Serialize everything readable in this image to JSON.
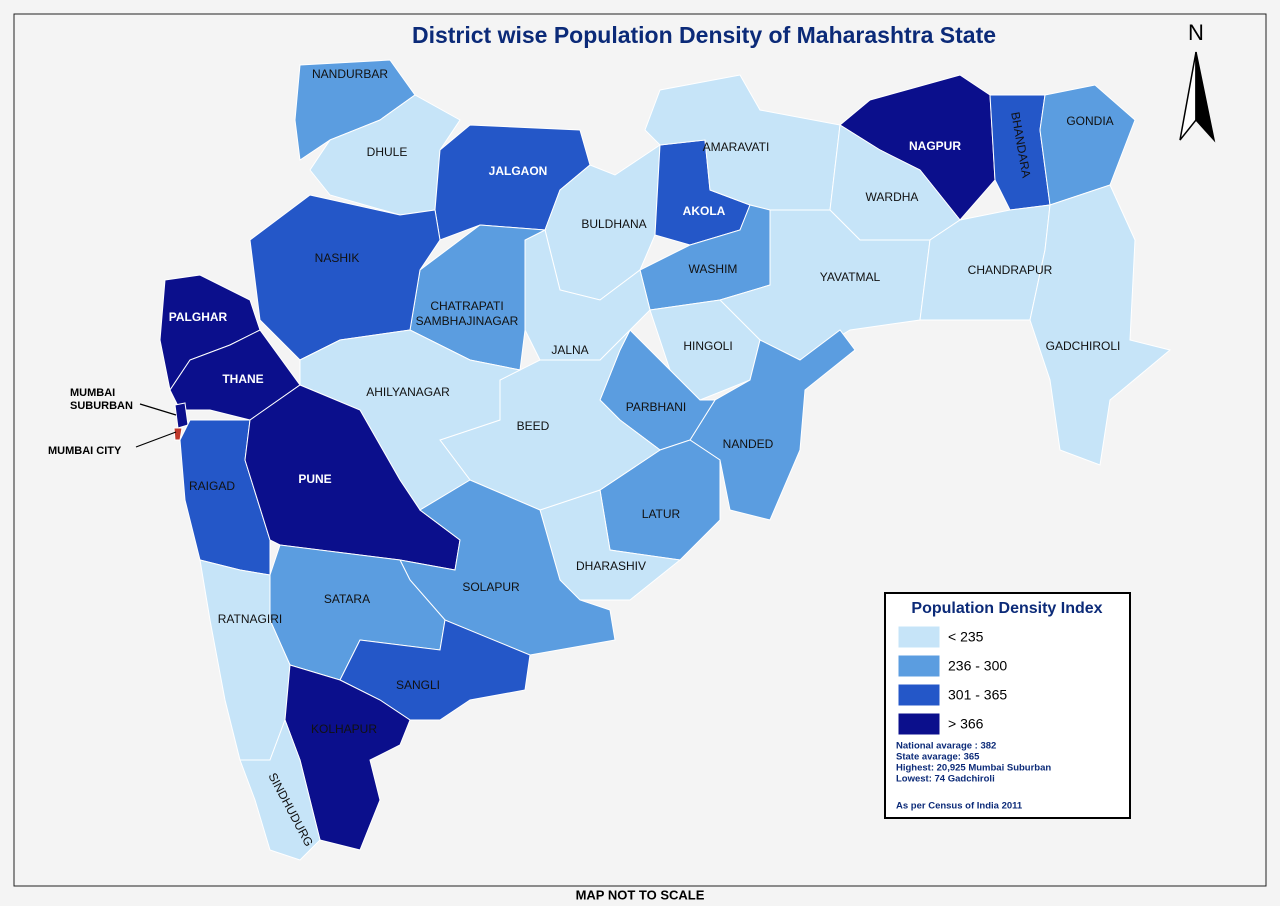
{
  "title": "District wise Population Density of Maharashtra State",
  "north": "N",
  "footer": "MAP NOT TO SCALE",
  "districts": [
    {
      "name": "NANDURBAR",
      "color": "#5b9de0"
    },
    {
      "name": "DHULE",
      "color": "#c6e4f8"
    },
    {
      "name": "JALGAON",
      "color": "#2457c8"
    },
    {
      "name": "BULDHANA",
      "color": "#c6e4f8"
    },
    {
      "name": "AKOLA",
      "color": "#2457c8"
    },
    {
      "name": "AMARAVATI",
      "color": "#c6e4f8"
    },
    {
      "name": "WASHIM",
      "color": "#5b9de0"
    },
    {
      "name": "NAGPUR",
      "color": "#0b0f8c"
    },
    {
      "name": "BHANDARA",
      "color": "#2457c8"
    },
    {
      "name": "GONDIA",
      "color": "#5b9de0"
    },
    {
      "name": "WARDHA",
      "color": "#c6e4f8"
    },
    {
      "name": "YAVATMAL",
      "color": "#c6e4f8"
    },
    {
      "name": "CHANDRAPUR",
      "color": "#c6e4f8"
    },
    {
      "name": "GADCHIROLI",
      "color": "#c6e4f8"
    },
    {
      "name": "HINGOLI",
      "color": "#c6e4f8"
    },
    {
      "name": "NANDED",
      "color": "#5b9de0"
    },
    {
      "name": "PARBHANI",
      "color": "#5b9de0"
    },
    {
      "name": "LATUR",
      "color": "#5b9de0"
    },
    {
      "name": "DHARASHIV",
      "color": "#c6e4f8"
    },
    {
      "name": "BEED",
      "color": "#c6e4f8"
    },
    {
      "name": "JALNA",
      "color": "#c6e4f8"
    },
    {
      "name": "CHATRAPATI SAMBHAJINAGAR",
      "color": "#5b9de0"
    },
    {
      "name": "NASHIK",
      "color": "#2457c8"
    },
    {
      "name": "AHILYANAGAR",
      "color": "#c6e4f8"
    },
    {
      "name": "PALGHAR",
      "color": "#0b0f8c"
    },
    {
      "name": "THANE",
      "color": "#0b0f8c"
    },
    {
      "name": "MUMBAI SUBURBAN",
      "color": "#0b0f8c"
    },
    {
      "name": "MUMBAI CITY",
      "color": "#c0392b"
    },
    {
      "name": "RAIGAD",
      "color": "#2457c8"
    },
    {
      "name": "PUNE",
      "color": "#0b0f8c"
    },
    {
      "name": "SOLAPUR",
      "color": "#5b9de0"
    },
    {
      "name": "SATARA",
      "color": "#5b9de0"
    },
    {
      "name": "RATNAGIRI",
      "color": "#c6e4f8"
    },
    {
      "name": "SANGLI",
      "color": "#2457c8"
    },
    {
      "name": "KOLHAPUR",
      "color": "#0b0f8c"
    },
    {
      "name": "SINDHUDURG",
      "color": "#c6e4f8"
    }
  ],
  "legend": {
    "title": "Population Density Index",
    "items": [
      {
        "label": "<  235",
        "color": "#c6e4f8"
      },
      {
        "label": "236 - 300",
        "color": "#5b9de0"
      },
      {
        "label": "301 - 365",
        "color": "#2457c8"
      },
      {
        "label": "> 366",
        "color": "#0b0f8c"
      }
    ],
    "notes": [
      "National avarage : 382",
      "State avarage: 365",
      "Highest: 20,925 Mumbai Suburban",
      "Lowest: 74 Gadchiroli"
    ],
    "source": "As per Census of India 2011"
  }
}
